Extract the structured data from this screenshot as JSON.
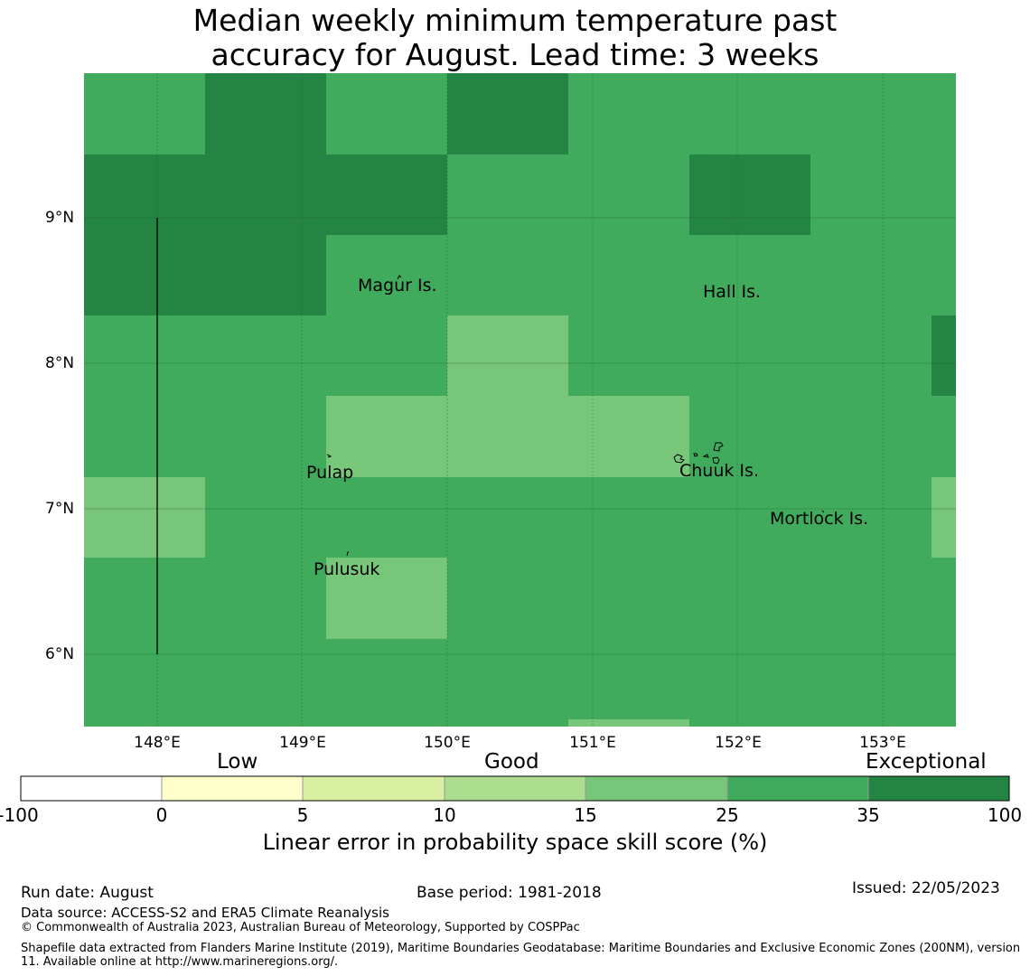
{
  "title_line1": "Median weekly minimum temperature past",
  "title_line2": "accuracy for August. Lead time: 3 weeks",
  "map": {
    "lon_ticks": [
      "148°E",
      "149°E",
      "150°E",
      "151°E",
      "152°E",
      "153°E"
    ],
    "lat_ticks": [
      "9°N",
      "8°N",
      "7°N",
      "6°N"
    ],
    "places": [
      "Magur Is.",
      "Hall Is.",
      "Pulap",
      "Chuuk Is.",
      "Mortlock Is.",
      "Pulusuk"
    ],
    "colors": {
      "exceptional": "#238443",
      "good_high": "#41ab5d",
      "good_mid": "#78c679"
    }
  },
  "legend": {
    "categories": [
      "Low",
      "Good",
      "Exceptional"
    ],
    "ticks": [
      "-100",
      "0",
      "5",
      "10",
      "15",
      "25",
      "35",
      "100"
    ],
    "bins": [
      "#ffffff",
      "#ffffcc",
      "#d9f0a3",
      "#addd8e",
      "#78c679",
      "#41ab5d",
      "#238443"
    ],
    "label": "Linear error in probability space skill score (%)"
  },
  "footer": {
    "run_date": "Run date: August",
    "base_period": "Base period: 1981-2018",
    "issued": "Issued: 22/05/2023",
    "data_source": "Data source: ACCESS-S2 and ERA5 Climate Reanalysis",
    "copyright": "© Commonwealth of Australia 2023, Australian Bureau of Meteorology, Supported by COSPPac",
    "shapefile": "Shapefile data extracted from Flanders Marine Institute (2019), Maritime Boundaries Geodatabase: Maritime Boundaries and Exclusive Economic Zones (200NM), version 11. Available online at http://www.marineregions.org/."
  }
}
